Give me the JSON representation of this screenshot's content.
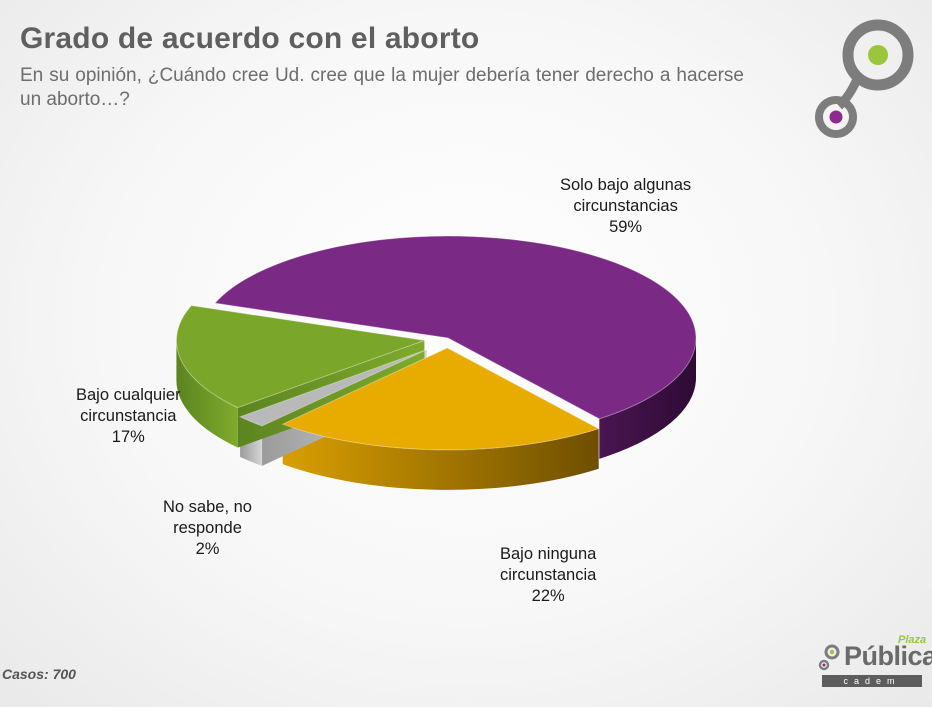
{
  "header": {
    "title": "Grado de acuerdo con el aborto",
    "subtitle": "En su opinión, ¿Cuándo cree Ud. cree que la mujer debería tener derecho a hacerse un aborto…?"
  },
  "chart_data": {
    "type": "pie",
    "title": "Grado de acuerdo con el aborto",
    "slices": [
      {
        "name": "Solo bajo algunas circunstancias",
        "label_lines": [
          "Solo bajo algunas",
          "circunstancias"
        ],
        "value": 59,
        "value_label": "59%",
        "color": "#7a2a84",
        "exploded": false
      },
      {
        "name": "Bajo ninguna circunstancia",
        "label_lines": [
          "Bajo ninguna",
          "circunstancia"
        ],
        "value": 22,
        "value_label": "22%",
        "color": "#e8ac00",
        "exploded": true
      },
      {
        "name": "No sabe, no responde",
        "label_lines": [
          "No sabe, no",
          "responde"
        ],
        "value": 2,
        "value_label": "2%",
        "color": "#b9b9b9",
        "exploded": true
      },
      {
        "name": "Bajo cualquier circunstancia",
        "label_lines": [
          "Bajo cualquier",
          "circunstancia"
        ],
        "value": 17,
        "value_label": "17%",
        "color": "#7aa62a",
        "exploded": true
      }
    ]
  },
  "footer": {
    "cases": "Casos: 700"
  },
  "brand": {
    "name": "Pública",
    "superscript": "Plaza",
    "tagline": "cadem"
  },
  "colors": {
    "accent_green": "#9bc53d",
    "accent_purple": "#8e2a8e",
    "logo_gray": "#777777"
  }
}
